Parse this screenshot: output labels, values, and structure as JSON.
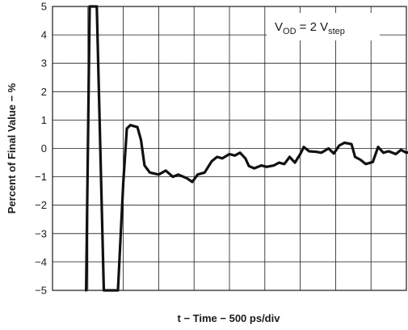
{
  "chart_data": {
    "type": "line",
    "title": "",
    "xlabel": "t − Time − 500 ps/div",
    "ylabel": "Percent of Final Value − %",
    "ylim": [
      -5,
      5
    ],
    "yticks": [
      "5",
      "4",
      "3",
      "2",
      "1",
      "0",
      "−1",
      "−2",
      "−3",
      "−4",
      "−5"
    ],
    "xdivisions": 10,
    "grid": true,
    "annotation": {
      "main": "V",
      "sub1": "OD",
      "eq": " = 2 V",
      "sub2": "step"
    },
    "series": [
      {
        "color": "#111111",
        "points": [
          [
            0.95,
            -5
          ],
          [
            1.05,
            5
          ],
          [
            1.25,
            5
          ],
          [
            1.45,
            -5
          ],
          [
            1.85,
            -5
          ],
          [
            2.0,
            -1.2
          ],
          [
            2.1,
            0.7
          ],
          [
            2.2,
            0.82
          ],
          [
            2.4,
            0.75
          ],
          [
            2.5,
            0.3
          ],
          [
            2.6,
            -0.6
          ],
          [
            2.75,
            -0.85
          ],
          [
            3.0,
            -0.92
          ],
          [
            3.2,
            -0.78
          ],
          [
            3.4,
            -1.0
          ],
          [
            3.55,
            -0.92
          ],
          [
            3.8,
            -1.05
          ],
          [
            3.95,
            -1.18
          ],
          [
            4.1,
            -0.92
          ],
          [
            4.3,
            -0.85
          ],
          [
            4.5,
            -0.45
          ],
          [
            4.65,
            -0.3
          ],
          [
            4.8,
            -0.35
          ],
          [
            5.0,
            -0.2
          ],
          [
            5.15,
            -0.25
          ],
          [
            5.3,
            -0.15
          ],
          [
            5.45,
            -0.35
          ],
          [
            5.55,
            -0.62
          ],
          [
            5.7,
            -0.7
          ],
          [
            5.9,
            -0.6
          ],
          [
            6.05,
            -0.65
          ],
          [
            6.25,
            -0.6
          ],
          [
            6.4,
            -0.5
          ],
          [
            6.55,
            -0.55
          ],
          [
            6.7,
            -0.3
          ],
          [
            6.85,
            -0.5
          ],
          [
            7.0,
            -0.2
          ],
          [
            7.1,
            0.05
          ],
          [
            7.25,
            -0.1
          ],
          [
            7.45,
            -0.12
          ],
          [
            7.6,
            -0.15
          ],
          [
            7.8,
            0.0
          ],
          [
            7.95,
            -0.18
          ],
          [
            8.1,
            0.1
          ],
          [
            8.25,
            0.2
          ],
          [
            8.45,
            0.15
          ],
          [
            8.55,
            -0.3
          ],
          [
            8.7,
            -0.4
          ],
          [
            8.85,
            -0.55
          ],
          [
            9.05,
            -0.48
          ],
          [
            9.2,
            0.05
          ],
          [
            9.35,
            -0.15
          ],
          [
            9.5,
            -0.1
          ],
          [
            9.7,
            -0.2
          ],
          [
            9.85,
            -0.05
          ],
          [
            10.0,
            -0.15
          ],
          [
            10.2,
            -0.1
          ],
          [
            10.4,
            -0.15
          ],
          [
            10.55,
            0.2
          ],
          [
            10.7,
            -0.05
          ],
          [
            10.9,
            -0.1
          ]
        ]
      }
    ]
  }
}
